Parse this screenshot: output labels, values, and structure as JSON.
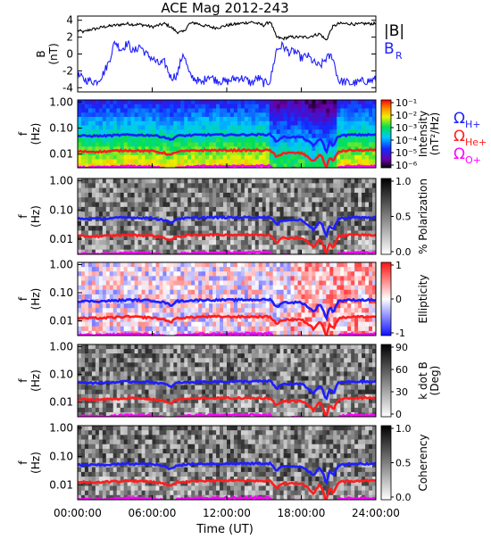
{
  "title": "ACE Mag 2012-243",
  "colors": {
    "b_total": "#000000",
    "b_r": "#1e1eff",
    "omega_h": "#1e1eff",
    "omega_he": "#ff1e1e",
    "omega_o": "#ff00ff"
  },
  "chart_data": {
    "type": "heatmap",
    "x_axis": {
      "label": "Time (UT)",
      "ticks": [
        "00:00:00",
        "06:00:00",
        "12:00:00",
        "18:00:00",
        "24:00:00"
      ],
      "range_hours": [
        0,
        24
      ]
    },
    "legend_labels": {
      "b_total": "|B|",
      "b_r": "B",
      "b_r_sub": "R",
      "omega_h": "H+",
      "omega_he": "He+",
      "omega_o": "O+",
      "omega_symbol": "Ω"
    },
    "panels": [
      {
        "id": "b-field",
        "type": "line",
        "ylabel": "B",
        "yunit": "(nT)",
        "ylim": [
          -4.5,
          4.5
        ],
        "yticks": [
          "4",
          "2",
          "0",
          "-2",
          "-4"
        ],
        "series": [
          {
            "name": "|B|",
            "x": [
              0,
              0.5,
              1,
              1.5,
              2,
              2.5,
              3,
              3.5,
              4,
              4.5,
              5,
              5.5,
              6,
              6.5,
              7,
              7.5,
              8,
              8.5,
              9,
              9.5,
              10,
              10.5,
              11,
              11.5,
              12,
              12.5,
              13,
              13.5,
              14,
              14.5,
              15,
              15.5,
              16,
              16.5,
              17,
              17.5,
              18,
              18.5,
              19,
              19.5,
              20,
              20.5,
              21,
              21.5,
              22,
              22.5,
              23,
              23.5,
              24
            ],
            "values": [
              2.8,
              2.6,
              2.9,
              3.0,
              3.2,
              3.3,
              3.4,
              3.5,
              3.6,
              3.5,
              3.5,
              3.4,
              3.2,
              3.4,
              3.6,
              3.2,
              2.6,
              2.6,
              3.6,
              3.7,
              3.4,
              3.3,
              3.1,
              3.2,
              3.4,
              3.5,
              3.6,
              3.7,
              3.8,
              3.6,
              3.4,
              3.9,
              2.0,
              1.8,
              2.0,
              2.0,
              2.0,
              2.0,
              2.2,
              2.4,
              1.6,
              3.2,
              3.6,
              3.6,
              3.6,
              3.5,
              3.6,
              3.6,
              3.6
            ]
          },
          {
            "name": "B_R",
            "x": [
              0,
              0.5,
              1,
              1.5,
              2,
              2.5,
              3,
              3.5,
              4,
              4.5,
              5,
              5.5,
              6,
              6.5,
              7,
              7.5,
              8,
              8.5,
              9,
              9.5,
              10,
              10.5,
              11,
              11.5,
              12,
              12.5,
              13,
              13.5,
              14,
              14.5,
              15,
              15.5,
              16,
              16.5,
              17,
              17.5,
              18,
              18.5,
              19,
              19.5,
              20,
              20.5,
              21,
              21.5,
              22,
              22.5,
              23,
              23.5,
              24
            ],
            "values": [
              -2.5,
              -3.0,
              -3.2,
              -3.3,
              -2.5,
              -1.0,
              1.5,
              0.5,
              1.3,
              0.2,
              1.0,
              0.0,
              -0.5,
              -1.2,
              -1.0,
              -2.8,
              -2.5,
              0.2,
              -2.5,
              -3.0,
              -3.5,
              -2.5,
              -3.0,
              -3.2,
              -3.3,
              -3.0,
              -2.8,
              -3.0,
              -3.5,
              -2.8,
              -3.5,
              -3.2,
              0.5,
              1.0,
              0.2,
              0.3,
              -0.5,
              -0.2,
              -1.0,
              -1.5,
              -0.5,
              -0.2,
              -3.2,
              -3.3,
              -3.5,
              -3.4,
              -3.2,
              -3.2,
              -3.0
            ]
          }
        ]
      },
      {
        "id": "intensity",
        "type": "heatmap",
        "ylabel": "f",
        "yunit": "(Hz)",
        "yscale": "log",
        "ylim": [
          0.003,
          1.2
        ],
        "yticks": [
          "1.00",
          "0.10",
          "0.01"
        ],
        "colorbar": {
          "label": "Intensity",
          "unit": "(nT²/Hz)",
          "scale": "log",
          "ticks": [
            "10⁻¹",
            "10⁻²",
            "10⁻³",
            "10⁻⁴",
            "10⁻⁵",
            "10⁻⁶"
          ]
        }
      },
      {
        "id": "polarization",
        "type": "heatmap",
        "ylabel": "f",
        "yunit": "(Hz)",
        "yscale": "log",
        "ylim": [
          0.003,
          1.2
        ],
        "yticks": [
          "1.00",
          "0.10",
          "0.01"
        ],
        "colorbar": {
          "label": "% Polarization",
          "unit": "",
          "ticks": [
            "1.0",
            "0.5",
            "0.0"
          ]
        }
      },
      {
        "id": "ellipticity",
        "type": "heatmap",
        "ylabel": "f",
        "yunit": "(Hz)",
        "yscale": "log",
        "ylim": [
          0.003,
          1.2
        ],
        "yticks": [
          "1.00",
          "0.10",
          "0.01"
        ],
        "colorbar": {
          "label": "Ellipticity",
          "unit": "",
          "ticks": [
            "1",
            "0",
            "-1"
          ]
        }
      },
      {
        "id": "kdotb",
        "type": "heatmap",
        "ylabel": "f",
        "yunit": "(Hz)",
        "yscale": "log",
        "ylim": [
          0.003,
          1.2
        ],
        "yticks": [
          "1.00",
          "0.10",
          "0.01"
        ],
        "colorbar": {
          "label": "k dot B",
          "unit": "(Deg)",
          "ticks": [
            "90",
            "60",
            "30",
            "0"
          ]
        }
      },
      {
        "id": "coherency",
        "type": "heatmap",
        "ylabel": "f",
        "yunit": "(Hz)",
        "yscale": "log",
        "ylim": [
          0.003,
          1.2
        ],
        "yticks": [
          "1.00",
          "0.10",
          "0.01"
        ],
        "colorbar": {
          "label": "Coherency",
          "unit": "",
          "ticks": [
            "1.0",
            "0.5",
            "0.0"
          ]
        }
      }
    ],
    "gyrofrequency_lines": [
      {
        "name": "Ω H+",
        "x": [
          0,
          2,
          4,
          6,
          7,
          7.5,
          8,
          10,
          12,
          14,
          15.5,
          16,
          16.5,
          18,
          19,
          19.5,
          20,
          20.3,
          20.6,
          21,
          22,
          24
        ],
        "values": [
          0.05,
          0.05,
          0.055,
          0.053,
          0.045,
          0.035,
          0.05,
          0.055,
          0.055,
          0.056,
          0.057,
          0.03,
          0.045,
          0.045,
          0.02,
          0.04,
          0.01,
          0.03,
          0.02,
          0.05,
          0.055,
          0.055
        ]
      },
      {
        "name": "Ω He+",
        "x": [
          0,
          2,
          4,
          6,
          7,
          7.5,
          8,
          10,
          12,
          14,
          15.5,
          16,
          16.5,
          18,
          19,
          19.5,
          20,
          20.3,
          20.6,
          21,
          22,
          24
        ],
        "values": [
          0.0125,
          0.0125,
          0.014,
          0.013,
          0.011,
          0.009,
          0.0125,
          0.014,
          0.014,
          0.014,
          0.014,
          0.0075,
          0.011,
          0.011,
          0.005,
          0.01,
          0.0025,
          0.0075,
          0.005,
          0.0125,
          0.014,
          0.014
        ]
      },
      {
        "name": "Ω O+",
        "x": [
          0,
          2,
          4,
          6,
          7,
          7.5,
          8,
          10,
          12,
          14,
          15.5,
          16,
          16.5,
          18,
          19,
          19.5,
          20,
          20.3,
          20.6,
          21,
          22,
          24
        ],
        "values": [
          0.0031,
          0.0031,
          0.0034,
          0.0033,
          0.0028,
          0.0022,
          0.0031,
          0.0034,
          0.0034,
          0.0035,
          0.0035,
          0.0019,
          0.0028,
          0.0028,
          0.0013,
          0.0025,
          0.0006,
          0.0019,
          0.0013,
          0.0031,
          0.0034,
          0.0034
        ]
      }
    ]
  }
}
